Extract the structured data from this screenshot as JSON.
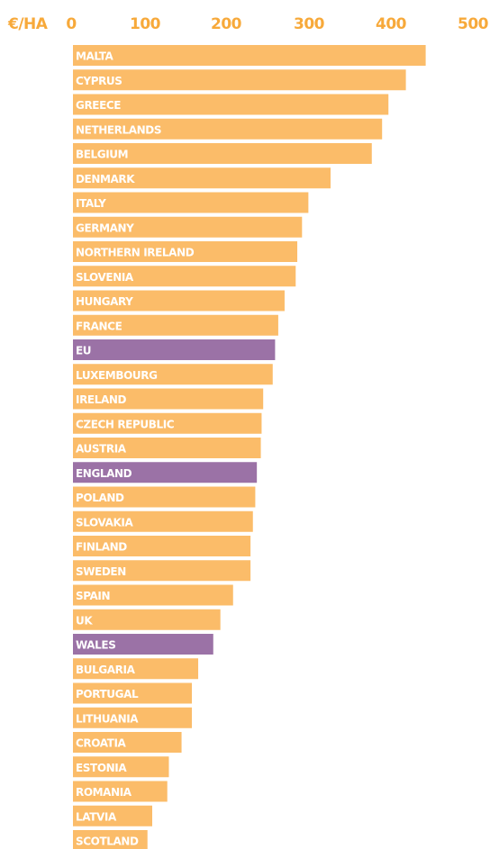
{
  "chart_data": {
    "type": "bar",
    "orientation": "horizontal",
    "unit_label": "€/HA",
    "xlim": [
      0,
      500
    ],
    "x_ticks": [
      "0",
      "100",
      "200",
      "300",
      "400",
      "500"
    ],
    "grid": false,
    "categories": [
      "MALTA",
      "CYPRUS",
      "GREECE",
      "NETHERLANDS",
      "BELGIUM",
      "DENMARK",
      "ITALY",
      "GERMANY",
      "NORTHERN IRELAND",
      "SLOVENIA",
      "HUNGARY",
      "FRANCE",
      "EU",
      "LUXEMBOURG",
      "IRELAND",
      "CZECH REPUBLIC",
      "AUSTRIA",
      "ENGLAND",
      "POLAND",
      "SLOVAKIA",
      "FINLAND",
      "SWEDEN",
      "SPAIN",
      "UK",
      "WALES",
      "BULGARIA",
      "PORTUGAL",
      "LITHUANIA",
      "CROATIA",
      "ESTONIA",
      "ROMANIA",
      "LATVIA",
      "SCOTLAND"
    ],
    "values": [
      445,
      420,
      398,
      390,
      377,
      325,
      297,
      289,
      283,
      281,
      267,
      259,
      255,
      252,
      240,
      238,
      237,
      232,
      230,
      227,
      224,
      224,
      202,
      186,
      177,
      158,
      150,
      150,
      137,
      121,
      119,
      100,
      94
    ],
    "highlighted": [
      "EU",
      "ENGLAND",
      "WALES"
    ],
    "colors": {
      "bar": "#fbbc69",
      "highlight": "#9b72a6",
      "axis_text": "#f7a93a",
      "bar_text": "#ffffff"
    }
  }
}
